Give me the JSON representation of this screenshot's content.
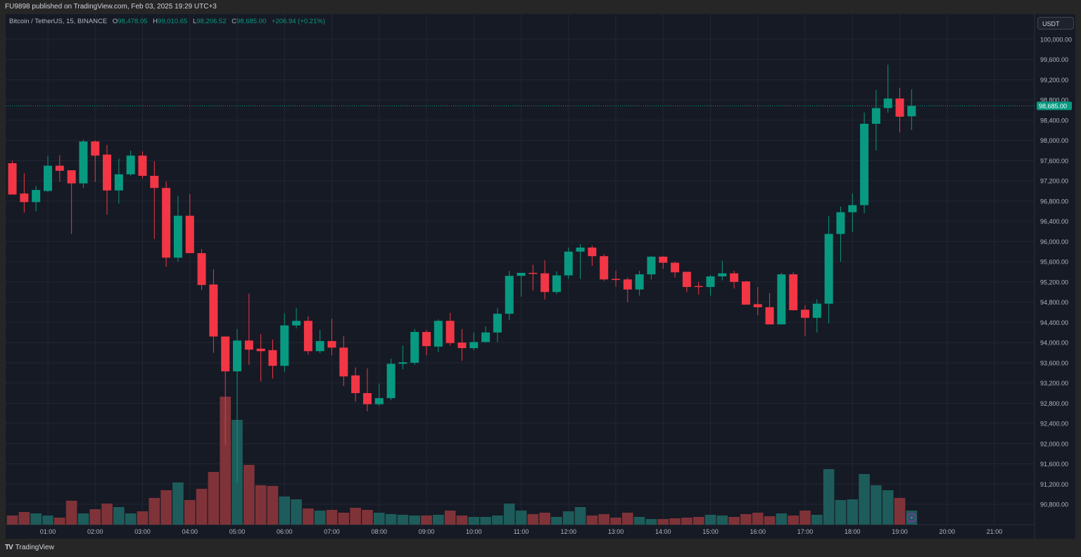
{
  "publish_line": "FU9898 published on TradingView.com, Feb 03, 2025 19:29 UTC+3",
  "legend": {
    "symbol": "Bitcoin / TetherUS, 15, BINANCE",
    "o_label": "O",
    "o": "98,478.05",
    "h_label": "H",
    "h": "99,010.65",
    "l_label": "L",
    "l": "98,206.52",
    "c_label": "C",
    "c": "98,685.00",
    "change": "+206.94 (+0.21%)"
  },
  "currency_button": "USDT",
  "brand": "TradingView",
  "colors": {
    "up": "#089981",
    "down": "#f23645",
    "up_vol": "#1d5c5a",
    "down_vol": "#7f3338",
    "bg": "#161a25",
    "grid": "#222633",
    "text": "#b2b5be"
  },
  "chart_data": {
    "type": "candlestick",
    "title": "Bitcoin / TetherUS, 15, BINANCE",
    "interval_minutes": 15,
    "first_candle_time": "00:15",
    "price_range": [
      90400,
      100400
    ],
    "price_ticks": [
      "100,000.00",
      "99,600.00",
      "99,200.00",
      "98,800.00",
      "98,400.00",
      "98,000.00",
      "97,600.00",
      "97,200.00",
      "96,800.00",
      "96,400.00",
      "96,000.00",
      "95,600.00",
      "95,200.00",
      "94,800.00",
      "94,400.00",
      "94,000.00",
      "93,600.00",
      "93,200.00",
      "92,800.00",
      "92,400.00",
      "92,000.00",
      "91,600.00",
      "91,200.00",
      "90,800.00"
    ],
    "time_ticks": [
      "01:00",
      "02:00",
      "03:00",
      "04:00",
      "05:00",
      "06:00",
      "07:00",
      "08:00",
      "09:00",
      "10:00",
      "11:00",
      "12:00",
      "13:00",
      "14:00",
      "15:00",
      "16:00",
      "17:00",
      "18:00",
      "19:00",
      "20:00",
      "21:00"
    ],
    "last_price": 98685.0,
    "last_price_label": "98,685.00",
    "volume_unit": "relative",
    "candles_ohlcv": [
      [
        97550,
        97600,
        96930,
        96930,
        13
      ],
      [
        96950,
        97350,
        96570,
        96780,
        18
      ],
      [
        96780,
        97100,
        96600,
        97020,
        16
      ],
      [
        97000,
        97700,
        96980,
        97500,
        13
      ],
      [
        97500,
        97710,
        97180,
        97400,
        10
      ],
      [
        97410,
        97410,
        96150,
        97150,
        34
      ],
      [
        97150,
        98020,
        97060,
        97980,
        16
      ],
      [
        97980,
        98000,
        97180,
        97700,
        22
      ],
      [
        97720,
        97910,
        96530,
        97010,
        30
      ],
      [
        97010,
        97640,
        96750,
        97330,
        25
      ],
      [
        97330,
        97800,
        97300,
        97700,
        16
      ],
      [
        97700,
        97780,
        97250,
        97300,
        19
      ],
      [
        97300,
        97590,
        96050,
        97060,
        38
      ],
      [
        97060,
        97190,
        95500,
        95680,
        49
      ],
      [
        95680,
        96900,
        95600,
        96510,
        60
      ],
      [
        96510,
        96940,
        95770,
        95770,
        35
      ],
      [
        95770,
        95850,
        95040,
        95140,
        51
      ],
      [
        95150,
        95450,
        93800,
        94120,
        75
      ],
      [
        94120,
        94120,
        91980,
        93430,
        182
      ],
      [
        93430,
        94270,
        91220,
        94040,
        149
      ],
      [
        94040,
        94970,
        93560,
        93860,
        85
      ],
      [
        93880,
        94170,
        93230,
        93830,
        56
      ],
      [
        93850,
        94060,
        93290,
        93540,
        55
      ],
      [
        93540,
        94580,
        93420,
        94340,
        40
      ],
      [
        94340,
        94680,
        94280,
        94430,
        36
      ],
      [
        94430,
        94520,
        93760,
        93830,
        23
      ],
      [
        93830,
        94250,
        93790,
        94030,
        20
      ],
      [
        94030,
        94470,
        93750,
        93900,
        21
      ],
      [
        93900,
        94130,
        93140,
        93330,
        17
      ],
      [
        93350,
        93510,
        92830,
        93000,
        24
      ],
      [
        93000,
        93490,
        92640,
        92780,
        21
      ],
      [
        92780,
        93190,
        92750,
        92900,
        17
      ],
      [
        92900,
        93680,
        92860,
        93580,
        15
      ],
      [
        93580,
        93940,
        93470,
        93610,
        14
      ],
      [
        93600,
        94270,
        93560,
        94210,
        13
      ],
      [
        94210,
        94250,
        93750,
        93930,
        13
      ],
      [
        93920,
        94460,
        93810,
        94430,
        14
      ],
      [
        94430,
        94590,
        93940,
        93990,
        20
      ],
      [
        94000,
        94270,
        93640,
        93890,
        13
      ],
      [
        93890,
        94200,
        93850,
        94010,
        11
      ],
      [
        94010,
        94320,
        94000,
        94200,
        11
      ],
      [
        94200,
        94680,
        94010,
        94570,
        13
      ],
      [
        94570,
        95420,
        94450,
        95320,
        30
      ],
      [
        95320,
        95380,
        94910,
        95380,
        20
      ],
      [
        95380,
        95540,
        95030,
        95360,
        15
      ],
      [
        95370,
        95630,
        94850,
        95000,
        17
      ],
      [
        95000,
        95410,
        94960,
        95330,
        11
      ],
      [
        95330,
        95880,
        95260,
        95800,
        19
      ],
      [
        95800,
        95950,
        95260,
        95880,
        25
      ],
      [
        95880,
        95920,
        95520,
        95710,
        13
      ],
      [
        95710,
        95750,
        95220,
        95250,
        15
      ],
      [
        95260,
        95420,
        95110,
        95240,
        10
      ],
      [
        95250,
        95290,
        94800,
        95050,
        17
      ],
      [
        95050,
        95420,
        94930,
        95350,
        11
      ],
      [
        95350,
        95710,
        95250,
        95700,
        8
      ],
      [
        95700,
        95710,
        95460,
        95580,
        8
      ],
      [
        95580,
        95600,
        95290,
        95390,
        9
      ],
      [
        95400,
        95400,
        95000,
        95100,
        10
      ],
      [
        95120,
        95200,
        94950,
        95100,
        11
      ],
      [
        95100,
        95340,
        94930,
        95310,
        14
      ],
      [
        95310,
        95620,
        95230,
        95370,
        13
      ],
      [
        95370,
        95420,
        95070,
        95200,
        11
      ],
      [
        95210,
        95220,
        94750,
        94750,
        15
      ],
      [
        94760,
        95100,
        94540,
        94700,
        17
      ],
      [
        94700,
        94980,
        94360,
        94360,
        12
      ],
      [
        94360,
        95380,
        94360,
        95350,
        16
      ],
      [
        95350,
        95390,
        94640,
        94640,
        13
      ],
      [
        94650,
        94740,
        94130,
        94490,
        20
      ],
      [
        94490,
        94860,
        94200,
        94770,
        14
      ],
      [
        94770,
        96510,
        94380,
        96150,
        79
      ],
      [
        96150,
        96690,
        95600,
        96580,
        35
      ],
      [
        96580,
        96950,
        96190,
        96720,
        36
      ],
      [
        96720,
        98550,
        96560,
        98330,
        72
      ],
      [
        98330,
        99000,
        97800,
        98640,
        56
      ],
      [
        98640,
        99500,
        98550,
        98830,
        49
      ],
      [
        98830,
        99040,
        98160,
        98470,
        38
      ],
      [
        98478,
        99010,
        98206,
        98685,
        20
      ]
    ]
  }
}
